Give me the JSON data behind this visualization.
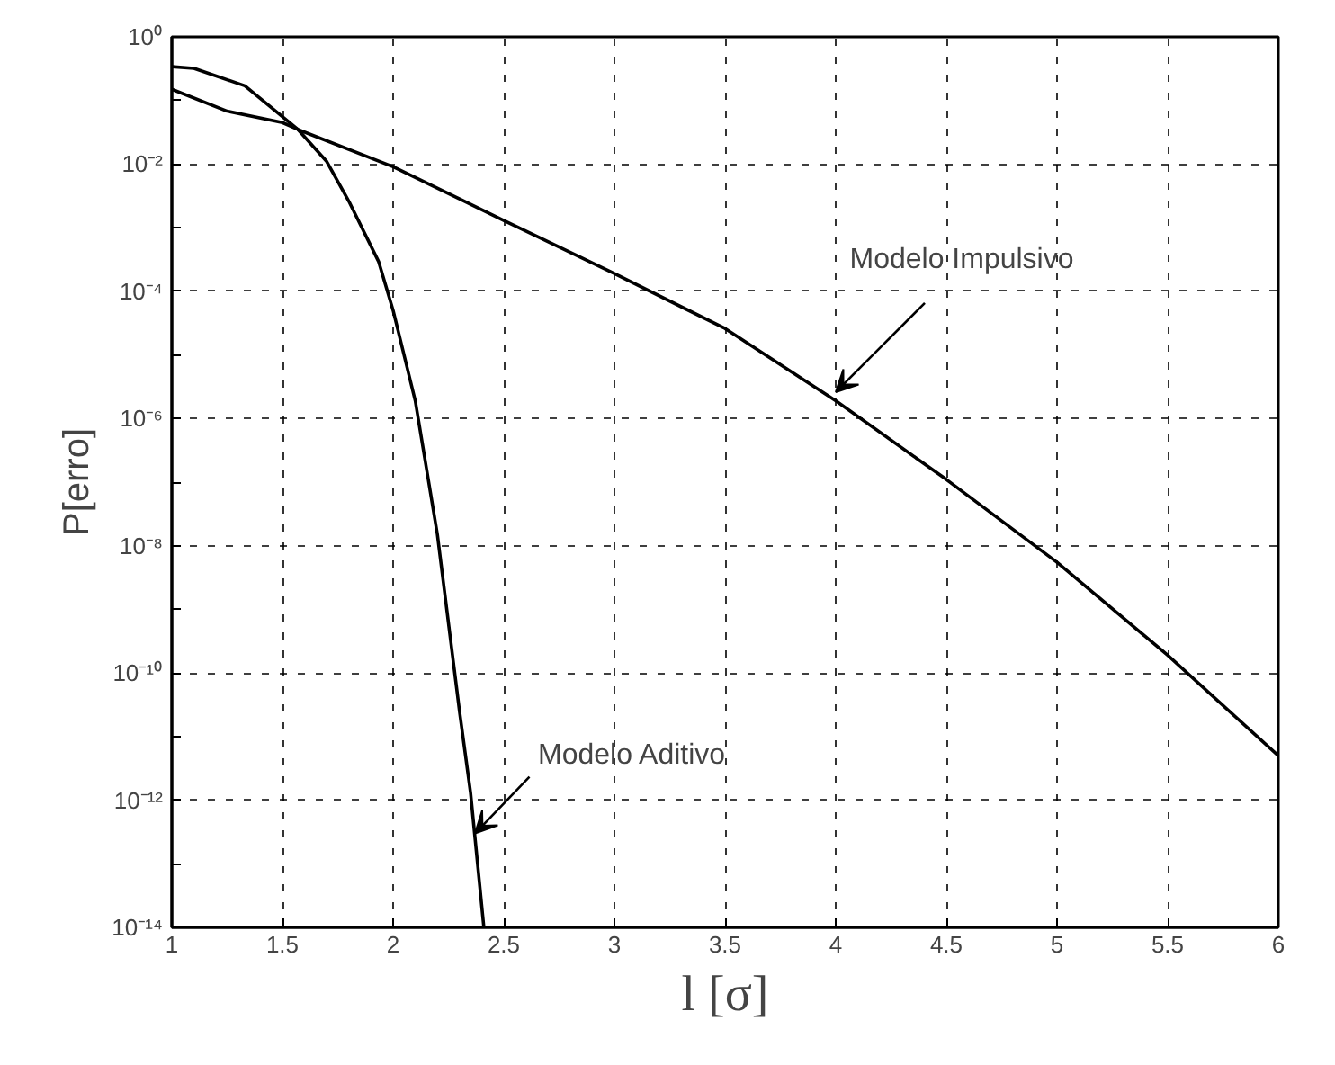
{
  "chart_data": {
    "type": "line",
    "xlabel": "l [σ]",
    "ylabel": "P[erro]",
    "log": "y",
    "grid": true,
    "line_style": "solid",
    "marker": "none",
    "xlim": [
      1,
      6
    ],
    "xticks": [
      1,
      1.5,
      2,
      2.5,
      3,
      3.5,
      4,
      4.5,
      5,
      5.5,
      6
    ],
    "ylim": [
      1e-14,
      1
    ],
    "yticks": [
      {
        "value": 1,
        "label": "10⁰"
      },
      {
        "value": 0.1,
        "label": null
      },
      {
        "value": 0.01,
        "label": "10⁻²"
      },
      {
        "value": 0.001,
        "label": null
      },
      {
        "value": 0.0001,
        "label": "10⁻⁴"
      },
      {
        "value": 1e-05,
        "label": null
      },
      {
        "value": 1e-06,
        "label": "10⁻⁶"
      },
      {
        "value": 1e-07,
        "label": null
      },
      {
        "value": 1e-08,
        "label": "10⁻⁸"
      },
      {
        "value": 1e-09,
        "label": null
      },
      {
        "value": 1e-10,
        "label": "10⁻¹⁰"
      },
      {
        "value": 1e-11,
        "label": null
      },
      {
        "value": 1e-12,
        "label": "10⁻¹²"
      },
      {
        "value": 1e-13,
        "label": null
      },
      {
        "value": 1e-14,
        "label": "10⁻¹⁴"
      }
    ],
    "series": [
      {
        "color": "#000000",
        "x": [
          1,
          1.25,
          1.5,
          1.57,
          2,
          2.5,
          3,
          3.5,
          4,
          4.5,
          5,
          5.5,
          6
        ],
        "values": [
          0.15,
          0.068,
          0.045,
          0.035,
          0.0091,
          0.0013,
          0.00019,
          2.6e-05,
          1.9e-06,
          1.1e-07,
          5.5e-09,
          1.9e-10,
          5e-12
        ]
      },
      {
        "color": "#000000",
        "x": [
          1,
          1.1,
          1.33,
          1.57,
          1.7,
          1.8,
          1.935,
          2,
          2.1,
          2.2,
          2.3,
          2.35,
          2.41
        ],
        "values": [
          0.34,
          0.32,
          0.17,
          0.035,
          0.011,
          0.0026,
          0.00029,
          5e-05,
          1.9e-06,
          1.5e-08,
          2.5e-11,
          1.3e-12,
          1e-14
        ]
      }
    ],
    "annotations": [
      {
        "text": "Modelo Impulsivo",
        "x": 4,
        "y": 2.6e-06
      },
      {
        "text": "Modelo Aditivo",
        "x": 2.37,
        "y": 3e-13
      }
    ]
  }
}
